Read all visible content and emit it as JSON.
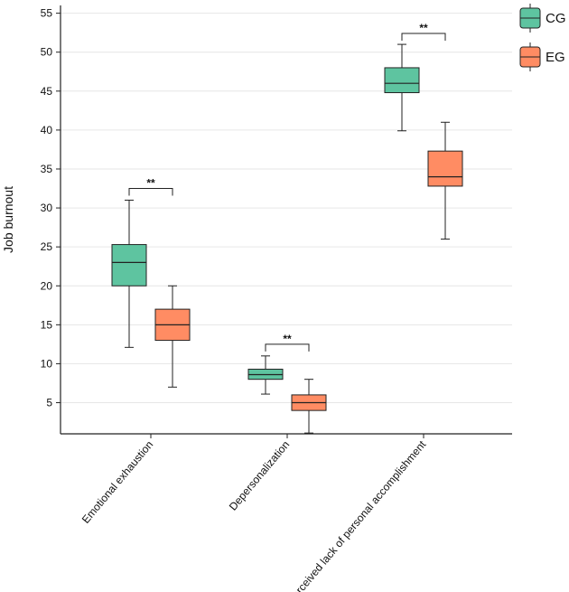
{
  "chart_data": {
    "type": "box",
    "title": "",
    "xlabel": "",
    "ylabel": "Job burnout",
    "ylim": [
      1,
      56
    ],
    "yticks": [
      5,
      10,
      15,
      20,
      25,
      30,
      35,
      40,
      45,
      50,
      55
    ],
    "grid": "horizontal",
    "legend_position": "top-right",
    "categories": [
      "Emotional exhaustion",
      "Depersonalization",
      "Perceived lack of personal accomplishment"
    ],
    "series": [
      {
        "name": "CG",
        "color": "#5ec4a0",
        "boxes": [
          {
            "min": 12.1,
            "q1": 20.0,
            "median": 23.0,
            "q3": 25.3,
            "max": 31.0
          },
          {
            "min": 6.1,
            "q1": 8.0,
            "median": 8.6,
            "q3": 9.3,
            "max": 11.0
          },
          {
            "min": 39.9,
            "q1": 44.8,
            "median": 46.0,
            "q3": 48.0,
            "max": 51.0
          }
        ]
      },
      {
        "name": "EG",
        "color": "#ff8c63",
        "boxes": [
          {
            "min": 7.0,
            "q1": 13.0,
            "median": 15.0,
            "q3": 17.0,
            "max": 20.0
          },
          {
            "min": 1.1,
            "q1": 4.0,
            "median": 5.0,
            "q3": 6.0,
            "max": 8.0
          },
          {
            "min": 26.0,
            "q1": 32.8,
            "median": 34.0,
            "q3": 37.3,
            "max": 41.0
          }
        ]
      }
    ],
    "significance": [
      {
        "category": "Emotional exhaustion",
        "label": "**",
        "y": 32.5
      },
      {
        "category": "Depersonalization",
        "label": "**",
        "y": 12.5
      },
      {
        "category": "Perceived lack of personal accomplishment",
        "label": "**",
        "y": 52.4
      }
    ]
  }
}
